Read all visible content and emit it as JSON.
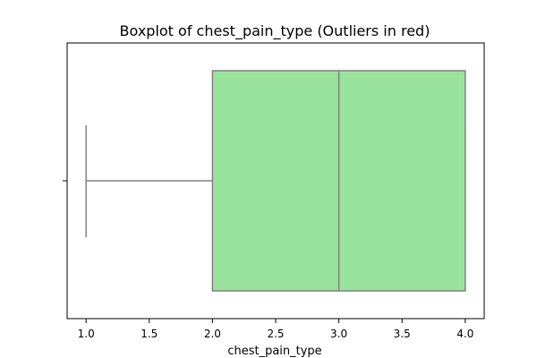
{
  "chart_data": {
    "type": "boxplot",
    "title": "Boxplot of chest_pain_type (Outliers in red)",
    "xlabel": "chest_pain_type",
    "ylabel": "",
    "orientation": "horizontal",
    "xlim": [
      0.85,
      4.15
    ],
    "xticks": [
      1.0,
      1.5,
      2.0,
      2.5,
      3.0,
      3.5,
      4.0
    ],
    "xtick_labels": [
      "1.0",
      "1.5",
      "2.0",
      "2.5",
      "3.0",
      "3.5",
      "4.0"
    ],
    "box": {
      "min": 1.0,
      "q1": 2.0,
      "median": 3.0,
      "q3": 4.0,
      "max": 4.0,
      "outliers": []
    },
    "grid": false,
    "colors": {
      "box_fill": "#9ae39c",
      "box_edge": "#808080",
      "outliers": "#ff0000"
    }
  }
}
